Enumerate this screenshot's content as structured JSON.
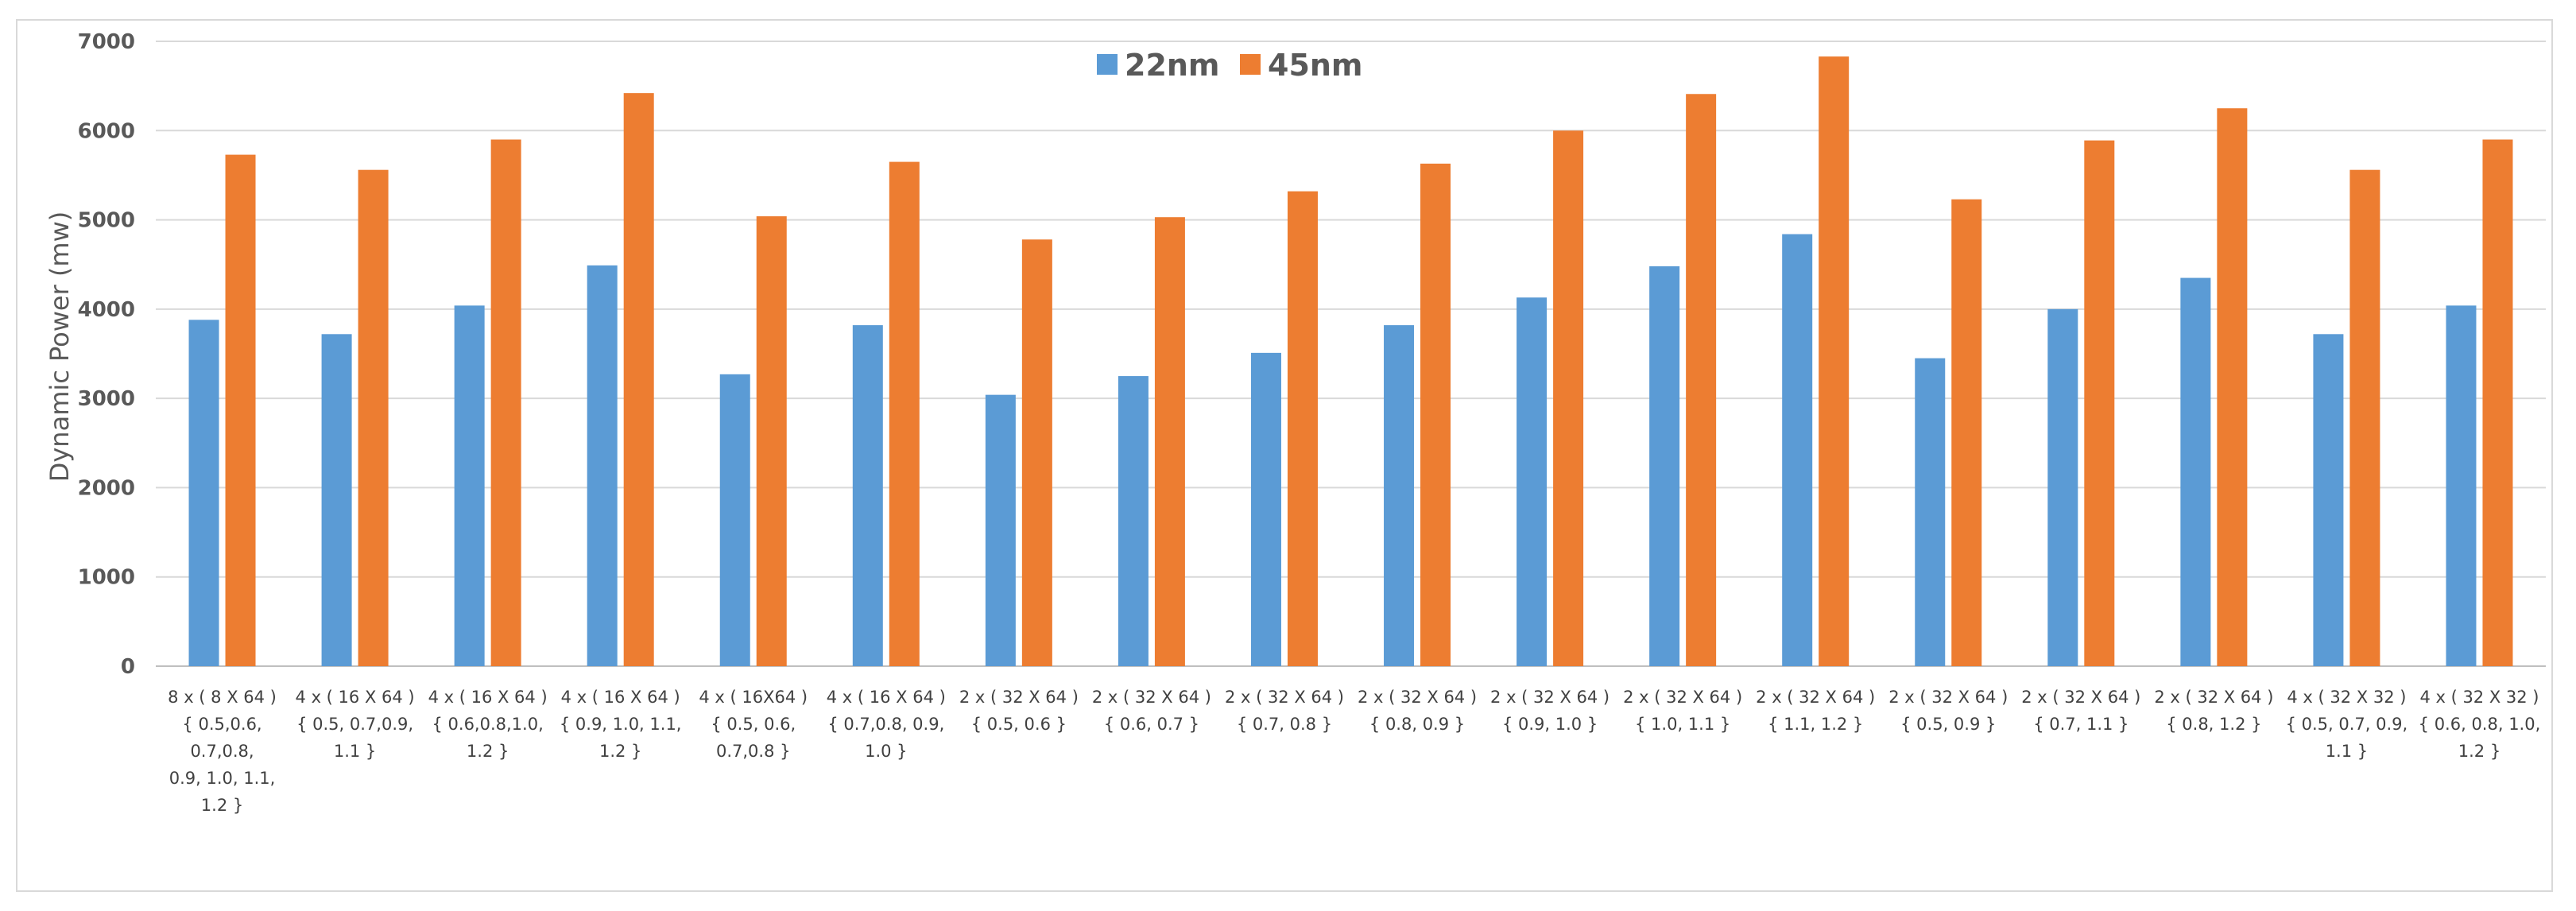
{
  "chart_data": {
    "type": "bar",
    "ylabel": "Dynamic Power (mw)",
    "ylim": [
      0,
      7000
    ],
    "yticks": [
      0,
      1000,
      2000,
      3000,
      4000,
      5000,
      6000,
      7000
    ],
    "grid": true,
    "legend_position": "top-center",
    "categories": [
      [
        "8 x ( 8 X 64 )",
        "{ 0.5,0.6,",
        "0.7,0.8,",
        "0.9, 1.0, 1.1,",
        "1.2 }"
      ],
      [
        "4 x ( 16 X 64 )",
        "{ 0.5, 0.7,0.9,",
        "1.1 }"
      ],
      [
        "4 x ( 16 X 64 )",
        "{ 0.6,0.8,1.0,",
        "1.2 }"
      ],
      [
        "4 x ( 16 X 64 )",
        "{ 0.9, 1.0, 1.1,",
        "1.2 }"
      ],
      [
        "4 x ( 16X64 )",
        "{ 0.5, 0.6,",
        "0.7,0.8 }"
      ],
      [
        "4 x ( 16 X 64 )",
        "{ 0.7,0.8, 0.9,",
        "1.0 }"
      ],
      [
        "2 x ( 32 X 64 )",
        "{ 0.5, 0.6 }"
      ],
      [
        "2 x ( 32 X 64 )",
        "{ 0.6, 0.7 }"
      ],
      [
        "2 x ( 32 X 64 )",
        "{ 0.7, 0.8 }"
      ],
      [
        "2 x ( 32 X 64 )",
        "{ 0.8, 0.9 }"
      ],
      [
        "2 x ( 32 X 64 )",
        "{ 0.9, 1.0 }"
      ],
      [
        "2 x ( 32 X 64 )",
        "{ 1.0, 1.1 }"
      ],
      [
        "2 x ( 32 X 64 )",
        "{ 1.1, 1.2 }"
      ],
      [
        "2 x ( 32 X 64 )",
        "{ 0.5, 0.9 }"
      ],
      [
        "2 x ( 32 X 64 )",
        "{ 0.7, 1.1 }"
      ],
      [
        "2 x ( 32 X 64 )",
        "{ 0.8, 1.2 }"
      ],
      [
        "4 x ( 32 X 32 )",
        "{ 0.5, 0.7, 0.9,",
        "1.1 }"
      ],
      [
        "4 x ( 32 X 32 )",
        "{ 0.6, 0.8, 1.0,",
        "1.2 }"
      ]
    ],
    "series": [
      {
        "name": "22nm",
        "color": "#5b9bd5",
        "values": [
          3880,
          3720,
          4040,
          4490,
          3270,
          3820,
          3040,
          3250,
          3510,
          3820,
          4130,
          4480,
          4840,
          3450,
          4000,
          4350,
          3720,
          4040
        ]
      },
      {
        "name": "45nm",
        "color": "#ed7d31",
        "values": [
          5730,
          5560,
          5900,
          6420,
          5040,
          5650,
          4780,
          5030,
          5320,
          5630,
          6000,
          6410,
          6830,
          5230,
          5890,
          6250,
          5560,
          5900
        ]
      }
    ]
  }
}
